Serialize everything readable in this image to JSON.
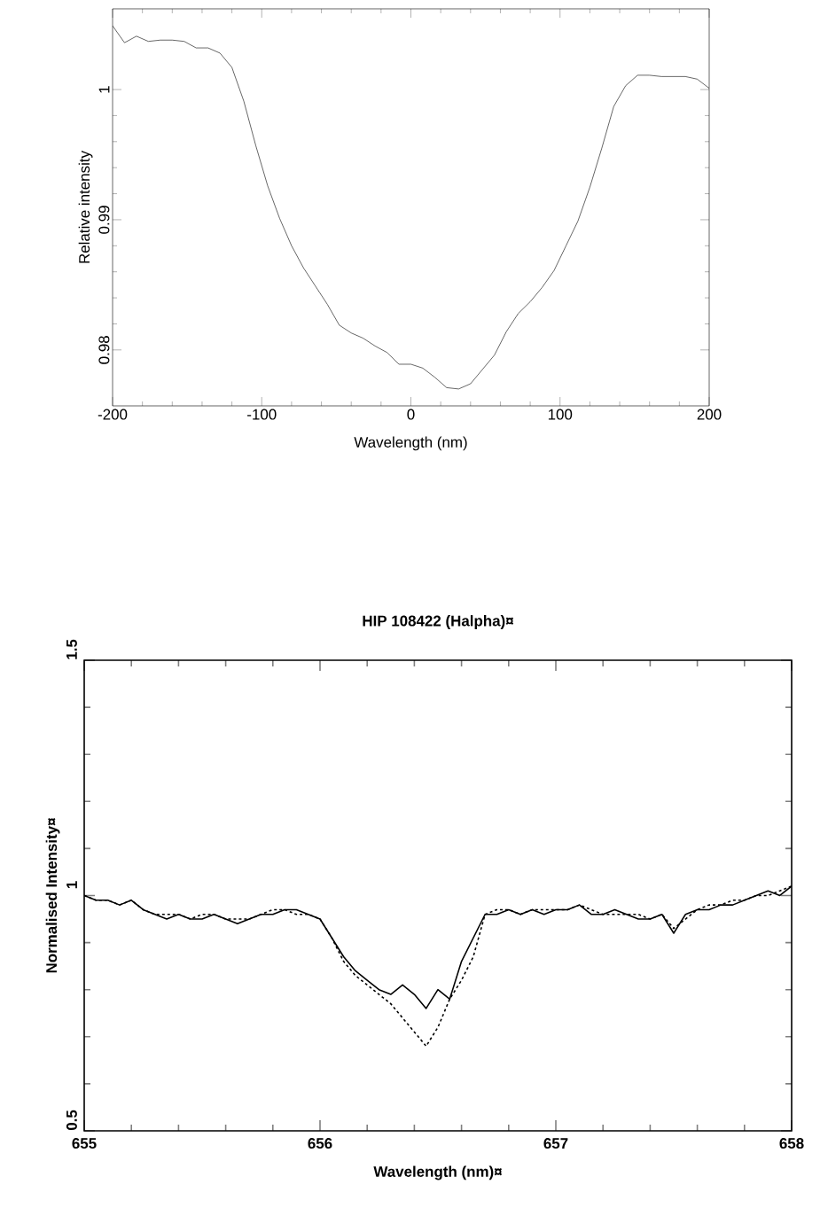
{
  "chart_data": [
    {
      "type": "line",
      "xlabel": "Wavelength (nm)",
      "ylabel": "Relative intensity",
      "x": [
        -200,
        -192,
        -184,
        -176,
        -168,
        -160,
        -152,
        -144,
        -136,
        -128,
        -120,
        -112,
        -104,
        -96,
        -88,
        -80,
        -72,
        -64,
        -56,
        -48,
        -40,
        -32,
        -24,
        -16,
        -8,
        0,
        8,
        16,
        24,
        32,
        40,
        48,
        56,
        64,
        72,
        80,
        88,
        96,
        104,
        112,
        120,
        128,
        136,
        144,
        152,
        160,
        168,
        176,
        184,
        192,
        200
      ],
      "series": [
        {
          "color": "#000000",
          "line_style": "solid",
          "values": [
            1.0049,
            1.0036,
            1.0041,
            1.0037,
            1.0038,
            1.0038,
            1.0037,
            1.0032,
            1.0032,
            1.0028,
            1.0017,
            0.9991,
            0.9957,
            0.9926,
            0.9901,
            0.988,
            0.9863,
            0.9849,
            0.9835,
            0.9819,
            0.9813,
            0.9809,
            0.9803,
            0.9798,
            0.9789,
            0.9789,
            0.9786,
            0.9779,
            0.9771,
            0.977,
            0.9774,
            0.9785,
            0.9796,
            0.9814,
            0.9828,
            0.9837,
            0.9848,
            0.9861,
            0.988,
            0.9899,
            0.9925,
            0.9955,
            0.9987,
            1.0003,
            1.0011,
            1.0011,
            1.001,
            1.001,
            1.001,
            1.0008,
            1.0001
          ]
        }
      ],
      "xlim": [
        -200,
        200
      ],
      "ylim": [
        0.9757,
        1.0062
      ],
      "xticks": [
        -200,
        -100,
        0,
        100,
        200
      ],
      "yticks": [
        0.98,
        0.99,
        1
      ],
      "grid": false,
      "marker": "none"
    },
    {
      "type": "line",
      "title": "HIP 108422 (Halpha)¤",
      "xlabel": "Wavelength (nm)¤",
      "ylabel": "Normalised Intensity¤",
      "x": [
        655.0,
        655.05,
        655.1,
        655.15,
        655.2,
        655.25,
        655.3,
        655.35,
        655.4,
        655.45,
        655.5,
        655.55,
        655.6,
        655.65,
        655.7,
        655.75,
        655.8,
        655.85,
        655.9,
        655.95,
        656.0,
        656.05,
        656.1,
        656.15,
        656.2,
        656.25,
        656.3,
        656.35,
        656.4,
        656.45,
        656.5,
        656.55,
        656.6,
        656.65,
        656.7,
        656.75,
        656.8,
        656.85,
        656.9,
        656.95,
        657.0,
        657.05,
        657.1,
        657.15,
        657.2,
        657.25,
        657.3,
        657.35,
        657.4,
        657.45,
        657.5,
        657.55,
        657.6,
        657.65,
        657.7,
        657.75,
        657.8,
        657.85,
        657.9,
        657.95,
        658.0
      ],
      "series": [
        {
          "color": "#000000",
          "line_style": "solid",
          "values": [
            1.0,
            0.99,
            0.99,
            0.98,
            0.99,
            0.97,
            0.96,
            0.95,
            0.96,
            0.95,
            0.95,
            0.96,
            0.95,
            0.94,
            0.95,
            0.96,
            0.96,
            0.97,
            0.97,
            0.96,
            0.95,
            0.91,
            0.87,
            0.84,
            0.82,
            0.8,
            0.79,
            0.81,
            0.79,
            0.76,
            0.8,
            0.78,
            0.86,
            0.91,
            0.96,
            0.96,
            0.97,
            0.96,
            0.97,
            0.96,
            0.97,
            0.97,
            0.98,
            0.96,
            0.96,
            0.97,
            0.96,
            0.95,
            0.95,
            0.96,
            0.92,
            0.96,
            0.97,
            0.97,
            0.98,
            0.98,
            0.99,
            1.0,
            1.01,
            1.0,
            1.02
          ]
        },
        {
          "color": "#000000",
          "line_style": "dashed",
          "values": [
            1.0,
            0.99,
            0.99,
            0.98,
            0.99,
            0.97,
            0.96,
            0.96,
            0.96,
            0.95,
            0.96,
            0.96,
            0.95,
            0.95,
            0.95,
            0.96,
            0.97,
            0.97,
            0.96,
            0.96,
            0.95,
            0.91,
            0.86,
            0.83,
            0.81,
            0.79,
            0.77,
            0.74,
            0.71,
            0.68,
            0.72,
            0.78,
            0.82,
            0.87,
            0.96,
            0.97,
            0.97,
            0.96,
            0.97,
            0.97,
            0.97,
            0.97,
            0.98,
            0.97,
            0.96,
            0.96,
            0.96,
            0.96,
            0.95,
            0.96,
            0.93,
            0.95,
            0.97,
            0.98,
            0.98,
            0.99,
            0.99,
            1.0,
            1.0,
            1.01,
            1.02
          ]
        }
      ],
      "xlim": [
        655,
        658
      ],
      "ylim": [
        0.5,
        1.5
      ],
      "xticks": [
        655,
        656,
        657,
        658
      ],
      "yticks": [
        0.5,
        1,
        1.5
      ],
      "grid": false,
      "marker": "none"
    }
  ]
}
